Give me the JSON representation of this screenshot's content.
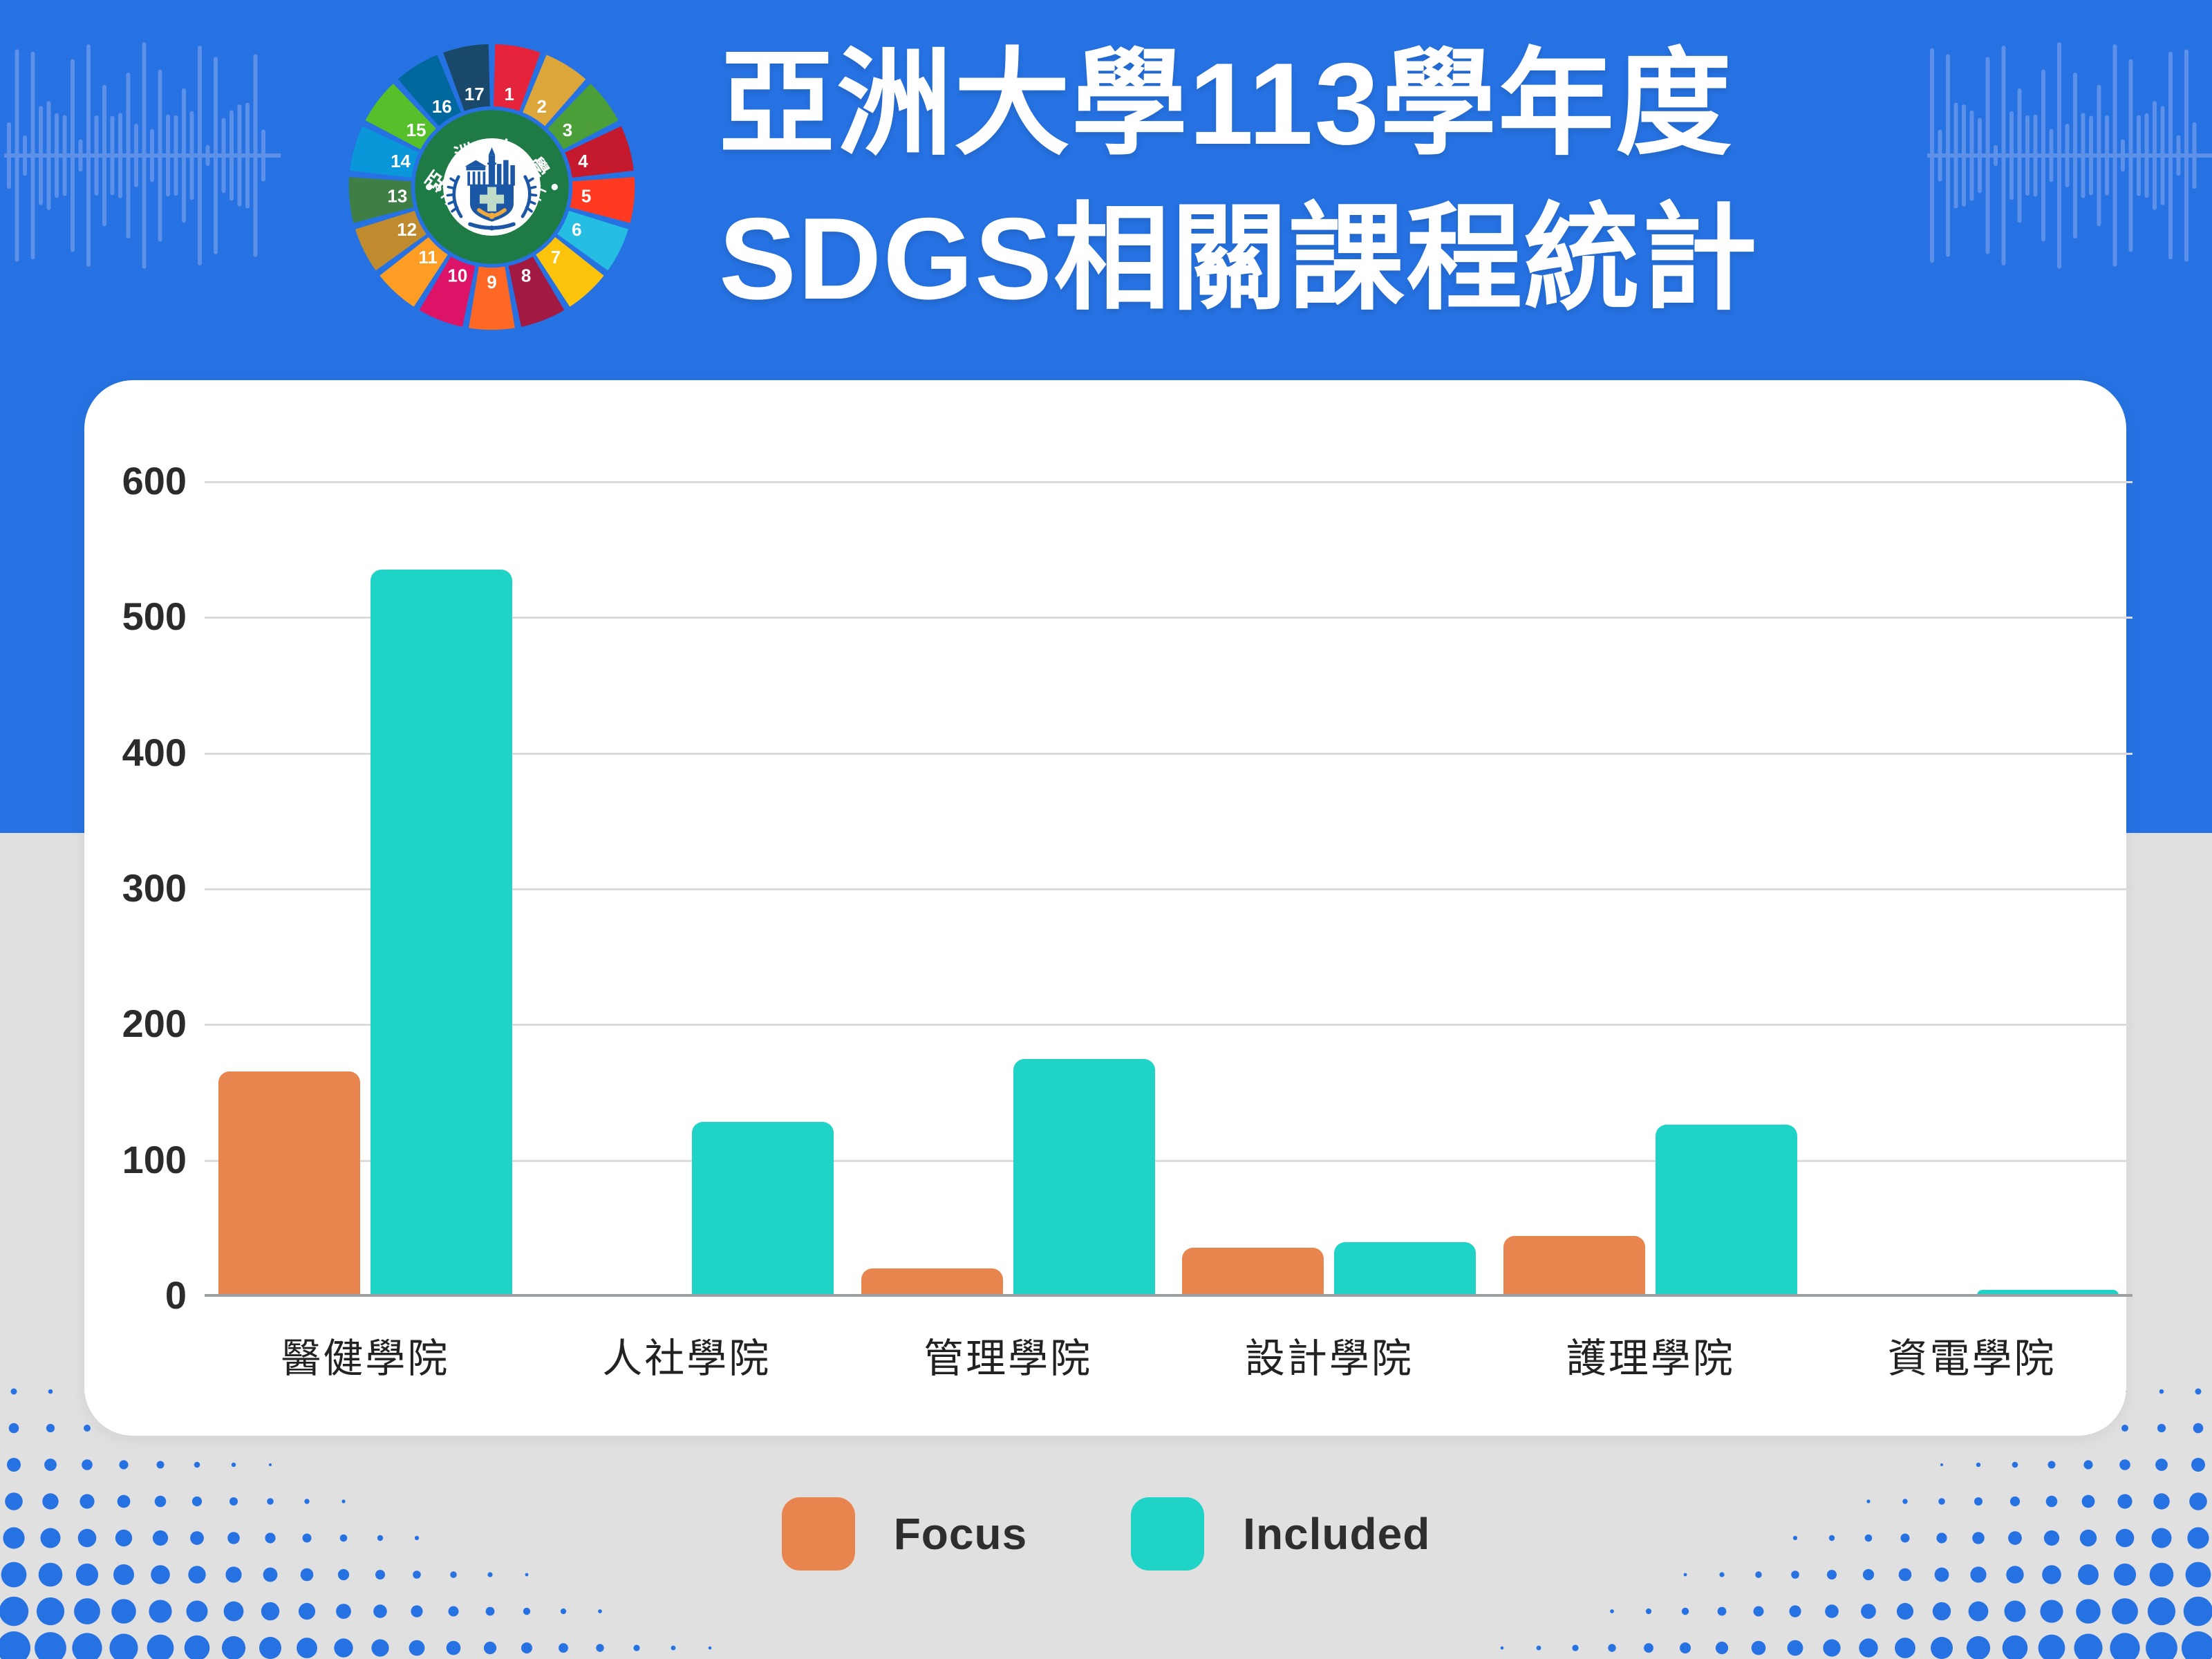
{
  "page": {
    "background_top_color": "#2672E2",
    "background_bottom_color": "#E0E0E0",
    "card_color": "#FFFFFF",
    "decoration_wave_color": "#5C90E9",
    "decoration_dot_color": "#2672E2"
  },
  "header": {
    "title_line1": "亞洲大學113學年度",
    "title_line2": "SDGS相關課程統計",
    "logo": {
      "ring_text_top": "亞洲大學",
      "ring_text_bottom": "ASIA UNIVERSITY",
      "ring_color": "#1E7B46",
      "emblem_blue": "#1C57A5",
      "emblem_cross_color": "#BEDCC8",
      "emblem_gold": "#F0A93C",
      "wheel_numbers": [
        "1",
        "2",
        "3",
        "4",
        "5",
        "6",
        "7",
        "8",
        "9",
        "10",
        "11",
        "12",
        "13",
        "14",
        "15",
        "16",
        "17"
      ],
      "sdg_colors": [
        "#E5243B",
        "#DDA63A",
        "#4C9F38",
        "#C5192D",
        "#FF3A21",
        "#26BDE2",
        "#FCC30B",
        "#A21942",
        "#FD6925",
        "#DD1367",
        "#FD9D24",
        "#BF8B2E",
        "#3F7E44",
        "#0A97D9",
        "#56C02B",
        "#00689D",
        "#19486A"
      ]
    }
  },
  "chart_data": {
    "type": "bar",
    "title": "",
    "categories": [
      "醫健學院",
      "人社學院",
      "管理學院",
      "設計學院",
      "護理學院",
      "資電學院"
    ],
    "series": [
      {
        "name": "Focus",
        "color": "#E8854E",
        "values": [
          165,
          1,
          20,
          35,
          44,
          0
        ]
      },
      {
        "name": "Included",
        "color": "#1FD3C6",
        "values": [
          535,
          128,
          174,
          39,
          126,
          4
        ]
      }
    ],
    "xlabel": "",
    "ylabel": "",
    "ylim": [
      0,
      600
    ],
    "yticks": [
      0,
      100,
      200,
      300,
      400,
      500,
      600
    ],
    "grid": true,
    "legend_position": "bottom"
  }
}
